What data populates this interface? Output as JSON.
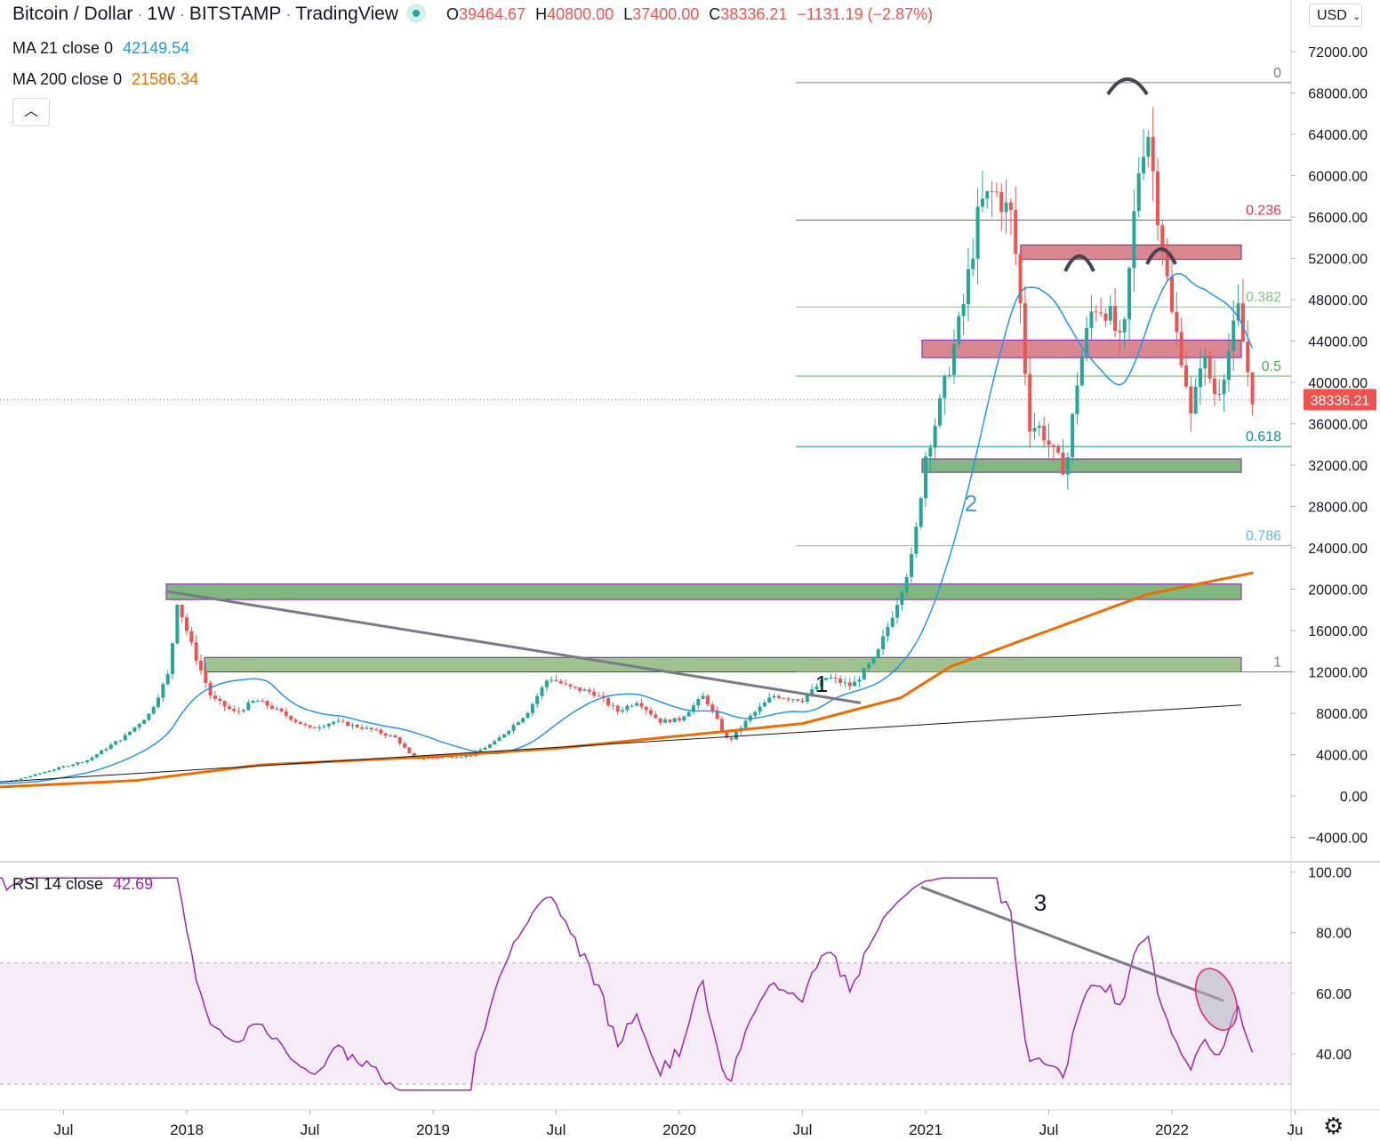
{
  "header": {
    "symbol": "Bitcoin / Dollar",
    "interval": "1W",
    "exchange": "BITSTAMP",
    "source": "TradingView",
    "open_label": "O",
    "open": "39464.67",
    "high_label": "H",
    "high": "40800.00",
    "low_label": "L",
    "low": "37400.00",
    "close_label": "C",
    "close": "38336.21",
    "change": "−1131.19 (−2.87%)"
  },
  "indicators": [
    {
      "label": "MA 21 close 0",
      "value": "42149.54",
      "color": "#2196f3"
    },
    {
      "label": "MA 200 close 0",
      "value": "21586.34",
      "color": "#ef6c00"
    }
  ],
  "currency": "USD",
  "currency_icon": "chevron-down-icon",
  "collapse_icon": "chevron-up-icon",
  "settings_icon": "gear-icon",
  "chart_data": {
    "type": "candlestick",
    "price_axis": {
      "ticks": [
        "72000.00",
        "68000.00",
        "64000.00",
        "60000.00",
        "56000.00",
        "52000.00",
        "48000.00",
        "44000.00",
        "40000.00",
        "36000.00",
        "32000.00",
        "28000.00",
        "24000.00",
        "20000.00",
        "16000.00",
        "12000.00",
        "8000.00",
        "4000.00",
        "0.00",
        "−4000.00"
      ],
      "range": [
        -6000,
        75000
      ],
      "current_price_label": "38336.21",
      "current_price": 38336.21
    },
    "time_axis": {
      "ticks": [
        "Jul",
        "2018",
        "Jul",
        "2019",
        "Jul",
        "2020",
        "Jul",
        "2021",
        "Jul",
        "2022",
        "Ju"
      ]
    },
    "fibonacci": [
      {
        "level": "0",
        "price": 69000,
        "color": "#787b86"
      },
      {
        "level": "0.236",
        "price": 55700,
        "color": "#f23645"
      },
      {
        "level": "0.382",
        "price": 47300,
        "color": "#81c784"
      },
      {
        "level": "0.5",
        "price": 40600,
        "color": "#4caf50"
      },
      {
        "level": "0.618",
        "price": 33800,
        "color": "#089981"
      },
      {
        "level": "0.786",
        "price": 24200,
        "color": "#64b5f6"
      },
      {
        "level": "1",
        "price": 12000,
        "color": "#787b86"
      }
    ],
    "zones": [
      {
        "kind": "resistance",
        "from": 51900,
        "to": 53300,
        "start": "2021-08",
        "color": "#d3727f"
      },
      {
        "kind": "resistance",
        "from": 42400,
        "to": 44100,
        "start": "2021-01",
        "color": "#d3727f"
      },
      {
        "kind": "support",
        "from": 31300,
        "to": 32600,
        "start": "2021-01",
        "color": "#6aa96a"
      },
      {
        "kind": "support",
        "from": 19000,
        "to": 20500,
        "start": "2017-12",
        "color": "#6aa96a"
      },
      {
        "kind": "support",
        "from": 12000,
        "to": 13400,
        "start": "2018-02",
        "color": "#8db97e"
      }
    ],
    "annotations": [
      "1",
      "2",
      "3"
    ],
    "ma21_last": 42149.54,
    "ma200_last": 21586.34,
    "rsi": {
      "label": "RSI 14 close",
      "value": "42.69",
      "ticks": [
        "100.00",
        "80.00",
        "60.00",
        "40.00"
      ],
      "band": [
        30,
        70
      ],
      "color": "#9c27b0"
    }
  }
}
